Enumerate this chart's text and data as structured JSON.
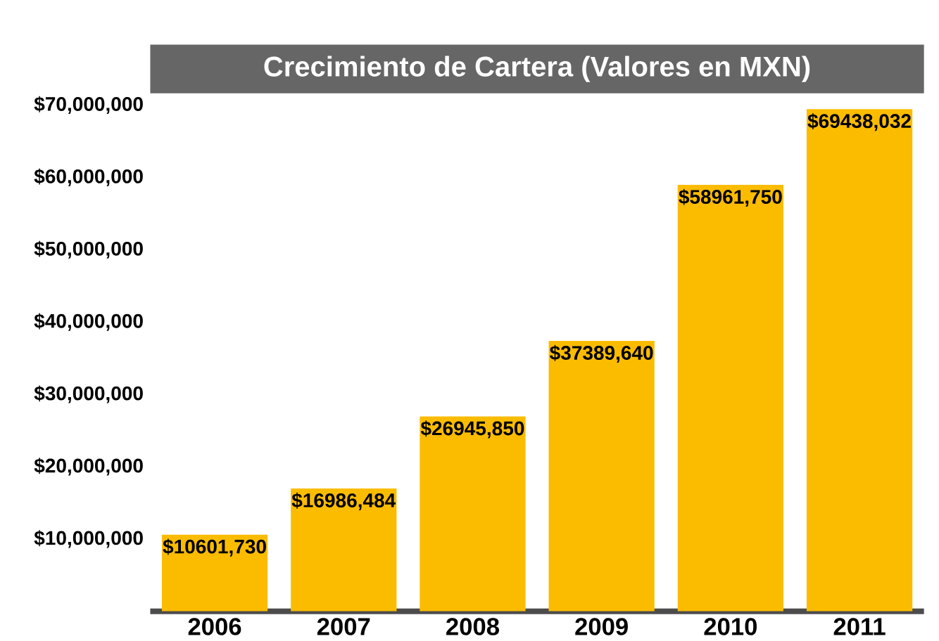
{
  "chart_data": {
    "type": "bar",
    "title": "Crecimiento de Cartera (Valores en MXN)",
    "categories": [
      "2006",
      "2007",
      "2008",
      "2009",
      "2010",
      "2011"
    ],
    "values": [
      10601730,
      16986484,
      26945850,
      37389640,
      58961750,
      69438032
    ],
    "value_labels": [
      "$10601,730",
      "$16986,484",
      "$26945,850",
      "$37389,640",
      "$58961,750",
      "$69438,032"
    ],
    "color": "#fbbc00",
    "ylim": [
      0,
      70000000
    ],
    "yticks": [
      {
        "value": 10000000,
        "label": "$10,000,000"
      },
      {
        "value": 20000000,
        "label": "$20,000,000"
      },
      {
        "value": 30000000,
        "label": "$30,000,000"
      },
      {
        "value": 40000000,
        "label": "$40,000,000"
      },
      {
        "value": 50000000,
        "label": "$50,000,000"
      },
      {
        "value": 60000000,
        "label": "$60,000,000"
      },
      {
        "value": 70000000,
        "label": "$70,000,000"
      }
    ],
    "grid": false
  }
}
